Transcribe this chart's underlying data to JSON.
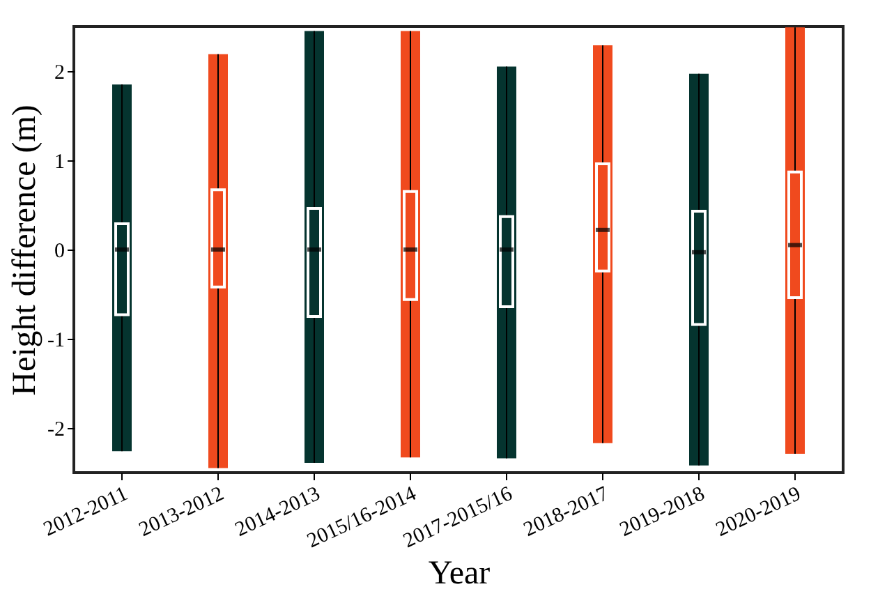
{
  "chart_data": {
    "type": "box",
    "xlabel": "Year",
    "ylabel": "Height difference (m)",
    "categories": [
      "2012-2011",
      "2013-2012",
      "2014-2013",
      "2015/16-2014",
      "2017-2015/16",
      "2018-2017",
      "2019-2018",
      "2020-2019"
    ],
    "ylim": [
      -2.5,
      2.5
    ],
    "yticks": [
      -2,
      -1,
      0,
      1,
      2
    ],
    "grid": false,
    "series": [
      {
        "color": "#05342f",
        "boxes": [
          {
            "low": -2.26,
            "q1": -0.73,
            "median": 0,
            "q3": 0.29,
            "high": 1.85
          },
          null,
          {
            "low": -2.39,
            "q1": -0.75,
            "median": 0,
            "q3": 0.46,
            "high": 2.45
          },
          null,
          {
            "low": -2.34,
            "q1": -0.64,
            "median": 0,
            "q3": 0.37,
            "high": 2.05
          },
          null,
          {
            "low": -2.42,
            "q1": -0.84,
            "median": -0.03,
            "q3": 0.43,
            "high": 1.97
          },
          null
        ]
      },
      {
        "color": "#f04a1e",
        "boxes": [
          null,
          {
            "low": -2.45,
            "q1": -0.42,
            "median": 0,
            "q3": 0.67,
            "high": 2.19
          },
          null,
          {
            "low": -2.33,
            "q1": -0.56,
            "median": 0,
            "q3": 0.65,
            "high": 2.45
          },
          null,
          {
            "low": -2.17,
            "q1": -0.24,
            "median": 0.22,
            "q3": 0.96,
            "high": 2.29
          },
          null,
          {
            "low": -2.29,
            "q1": -0.54,
            "median": 0.05,
            "q3": 0.87,
            "high": 2.49
          }
        ]
      }
    ]
  }
}
